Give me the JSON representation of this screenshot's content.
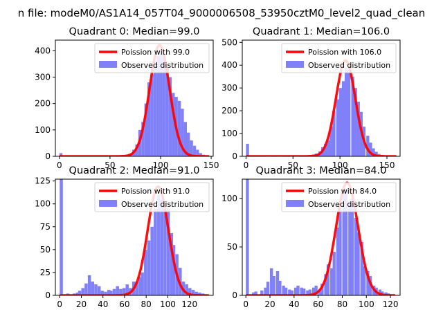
{
  "figure": {
    "suptitle": "n file: modeM0/AS1A14_057T04_9000006508_53950cztM0_level2_quad_clean"
  },
  "colors": {
    "bars": "#8080f8",
    "curve": "#ff0000",
    "axis": "#000000"
  },
  "chart_data": [
    {
      "type": "bar",
      "title": "Quadrant 0: Median=99.0",
      "median": 99.0,
      "bin_width": 3,
      "bins": [
        [
          0,
          12
        ],
        [
          51,
          2
        ],
        [
          54,
          3
        ],
        [
          57,
          3
        ],
        [
          60,
          3
        ],
        [
          63,
          4
        ],
        [
          66,
          5
        ],
        [
          69,
          10
        ],
        [
          72,
          25
        ],
        [
          75,
          45
        ],
        [
          78,
          100
        ],
        [
          81,
          130
        ],
        [
          84,
          200
        ],
        [
          87,
          280
        ],
        [
          90,
          310
        ],
        [
          93,
          360
        ],
        [
          96,
          380
        ],
        [
          99,
          390
        ],
        [
          102,
          375
        ],
        [
          105,
          340
        ],
        [
          108,
          300
        ],
        [
          111,
          240
        ],
        [
          114,
          225
        ],
        [
          117,
          210
        ],
        [
          120,
          180
        ],
        [
          123,
          130
        ],
        [
          126,
          90
        ],
        [
          129,
          60
        ],
        [
          132,
          40
        ],
        [
          135,
          25
        ],
        [
          138,
          12
        ],
        [
          141,
          6
        ],
        [
          144,
          3
        ]
      ],
      "xlim": [
        -4,
        152
      ],
      "ylim": [
        0,
        440
      ],
      "xticks": [
        0,
        50,
        100,
        150
      ],
      "yticks": [
        0,
        100,
        200,
        300,
        400
      ],
      "legend": [
        "Poission with 99.0",
        "Observed distribution"
      ]
    },
    {
      "type": "bar",
      "title": "Quadrant 1: Median=106.0",
      "median": 106.0,
      "bin_width": 3.2,
      "bins": [
        [
          0,
          55
        ],
        [
          12,
          2
        ],
        [
          16,
          2
        ],
        [
          22,
          3
        ],
        [
          29,
          2
        ],
        [
          35,
          3
        ],
        [
          42,
          2
        ],
        [
          48,
          3
        ],
        [
          54,
          3
        ],
        [
          60,
          4
        ],
        [
          64,
          3
        ],
        [
          67,
          6
        ],
        [
          70,
          8
        ],
        [
          73,
          12
        ],
        [
          77,
          22
        ],
        [
          80,
          40
        ],
        [
          83,
          55
        ],
        [
          86,
          70
        ],
        [
          89,
          130
        ],
        [
          92,
          200
        ],
        [
          96,
          250
        ],
        [
          99,
          300
        ],
        [
          102,
          330
        ],
        [
          105,
          390
        ],
        [
          108,
          380
        ],
        [
          112,
          350
        ],
        [
          115,
          300
        ],
        [
          118,
          240
        ],
        [
          121,
          195
        ],
        [
          124,
          130
        ],
        [
          128,
          90
        ],
        [
          131,
          60
        ],
        [
          134,
          35
        ],
        [
          137,
          20
        ],
        [
          140,
          10
        ],
        [
          144,
          6
        ],
        [
          147,
          3
        ],
        [
          150,
          2
        ]
      ],
      "xlim": [
        -4,
        164
      ],
      "ylim": [
        0,
        510
      ],
      "xticks": [
        0,
        50,
        100,
        150
      ],
      "yticks": [
        0,
        100,
        200,
        300,
        400,
        500
      ],
      "legend": [
        "Poission with 106.0",
        "Observed distribution"
      ]
    },
    {
      "type": "bar",
      "title": "Quadrant 2: Median=91.0",
      "median": 91.0,
      "bin_width": 2.9,
      "bins": [
        [
          0,
          150
        ],
        [
          3,
          1
        ],
        [
          6,
          2
        ],
        [
          9,
          1
        ],
        [
          12,
          2
        ],
        [
          15,
          3
        ],
        [
          17,
          5
        ],
        [
          20,
          8
        ],
        [
          23,
          13
        ],
        [
          26,
          22
        ],
        [
          29,
          15
        ],
        [
          32,
          12
        ],
        [
          35,
          10
        ],
        [
          38,
          5
        ],
        [
          41,
          4
        ],
        [
          44,
          6
        ],
        [
          46,
          5
        ],
        [
          49,
          7
        ],
        [
          52,
          10
        ],
        [
          55,
          7
        ],
        [
          58,
          8
        ],
        [
          61,
          12
        ],
        [
          64,
          8
        ],
        [
          67,
          15
        ],
        [
          70,
          15
        ],
        [
          73,
          20
        ],
        [
          75,
          25
        ],
        [
          78,
          50
        ],
        [
          81,
          60
        ],
        [
          84,
          75
        ],
        [
          87,
          95
        ],
        [
          90,
          110
        ],
        [
          93,
          105
        ],
        [
          96,
          100
        ],
        [
          99,
          95
        ],
        [
          102,
          68
        ],
        [
          104,
          55
        ],
        [
          107,
          45
        ],
        [
          110,
          30
        ],
        [
          113,
          15
        ],
        [
          116,
          12
        ],
        [
          119,
          8
        ],
        [
          122,
          6
        ],
        [
          125,
          4
        ],
        [
          128,
          3
        ],
        [
          131,
          2
        ],
        [
          134,
          1
        ]
      ],
      "xlim": [
        -4,
        142
      ],
      "ylim": [
        0,
        127
      ],
      "xticks": [
        0,
        20,
        40,
        60,
        80,
        100,
        120
      ],
      "yticks": [
        0,
        25,
        50,
        75,
        100,
        125
      ],
      "legend": [
        "Poission with 91.0",
        "Observed distribution"
      ]
    },
    {
      "type": "bar",
      "title": "Quadrant 3: Median=84.0",
      "median": 84.0,
      "bin_width": 2.5,
      "bins": [
        [
          0,
          150
        ],
        [
          5,
          3
        ],
        [
          7,
          4
        ],
        [
          12,
          5
        ],
        [
          15,
          8
        ],
        [
          17,
          14
        ],
        [
          20,
          28
        ],
        [
          22,
          20
        ],
        [
          25,
          25
        ],
        [
          27,
          15
        ],
        [
          30,
          10
        ],
        [
          32,
          8
        ],
        [
          35,
          6
        ],
        [
          37,
          5
        ],
        [
          40,
          8
        ],
        [
          42,
          10
        ],
        [
          45,
          8
        ],
        [
          47,
          7
        ],
        [
          50,
          5
        ],
        [
          52,
          6
        ],
        [
          55,
          8
        ],
        [
          57,
          10
        ],
        [
          60,
          6
        ],
        [
          62,
          12
        ],
        [
          65,
          22
        ],
        [
          67,
          32
        ],
        [
          70,
          28
        ],
        [
          72,
          45
        ],
        [
          75,
          70
        ],
        [
          77,
          90
        ],
        [
          80,
          105
        ],
        [
          82,
          110
        ],
        [
          85,
          95
        ],
        [
          87,
          100
        ],
        [
          90,
          80
        ],
        [
          92,
          65
        ],
        [
          95,
          55
        ],
        [
          97,
          30
        ],
        [
          100,
          25
        ],
        [
          102,
          20
        ],
        [
          105,
          10
        ],
        [
          107,
          8
        ],
        [
          110,
          6
        ],
        [
          112,
          4
        ],
        [
          115,
          3
        ],
        [
          117,
          2
        ],
        [
          120,
          1
        ]
      ],
      "xlim": [
        -3,
        128
      ],
      "ylim": [
        0,
        120
      ],
      "xticks": [
        0,
        20,
        40,
        60,
        80,
        100,
        120
      ],
      "yticks": [
        0,
        50,
        100
      ],
      "legend": [
        "Poission with 84.0",
        "Observed distribution"
      ]
    }
  ]
}
